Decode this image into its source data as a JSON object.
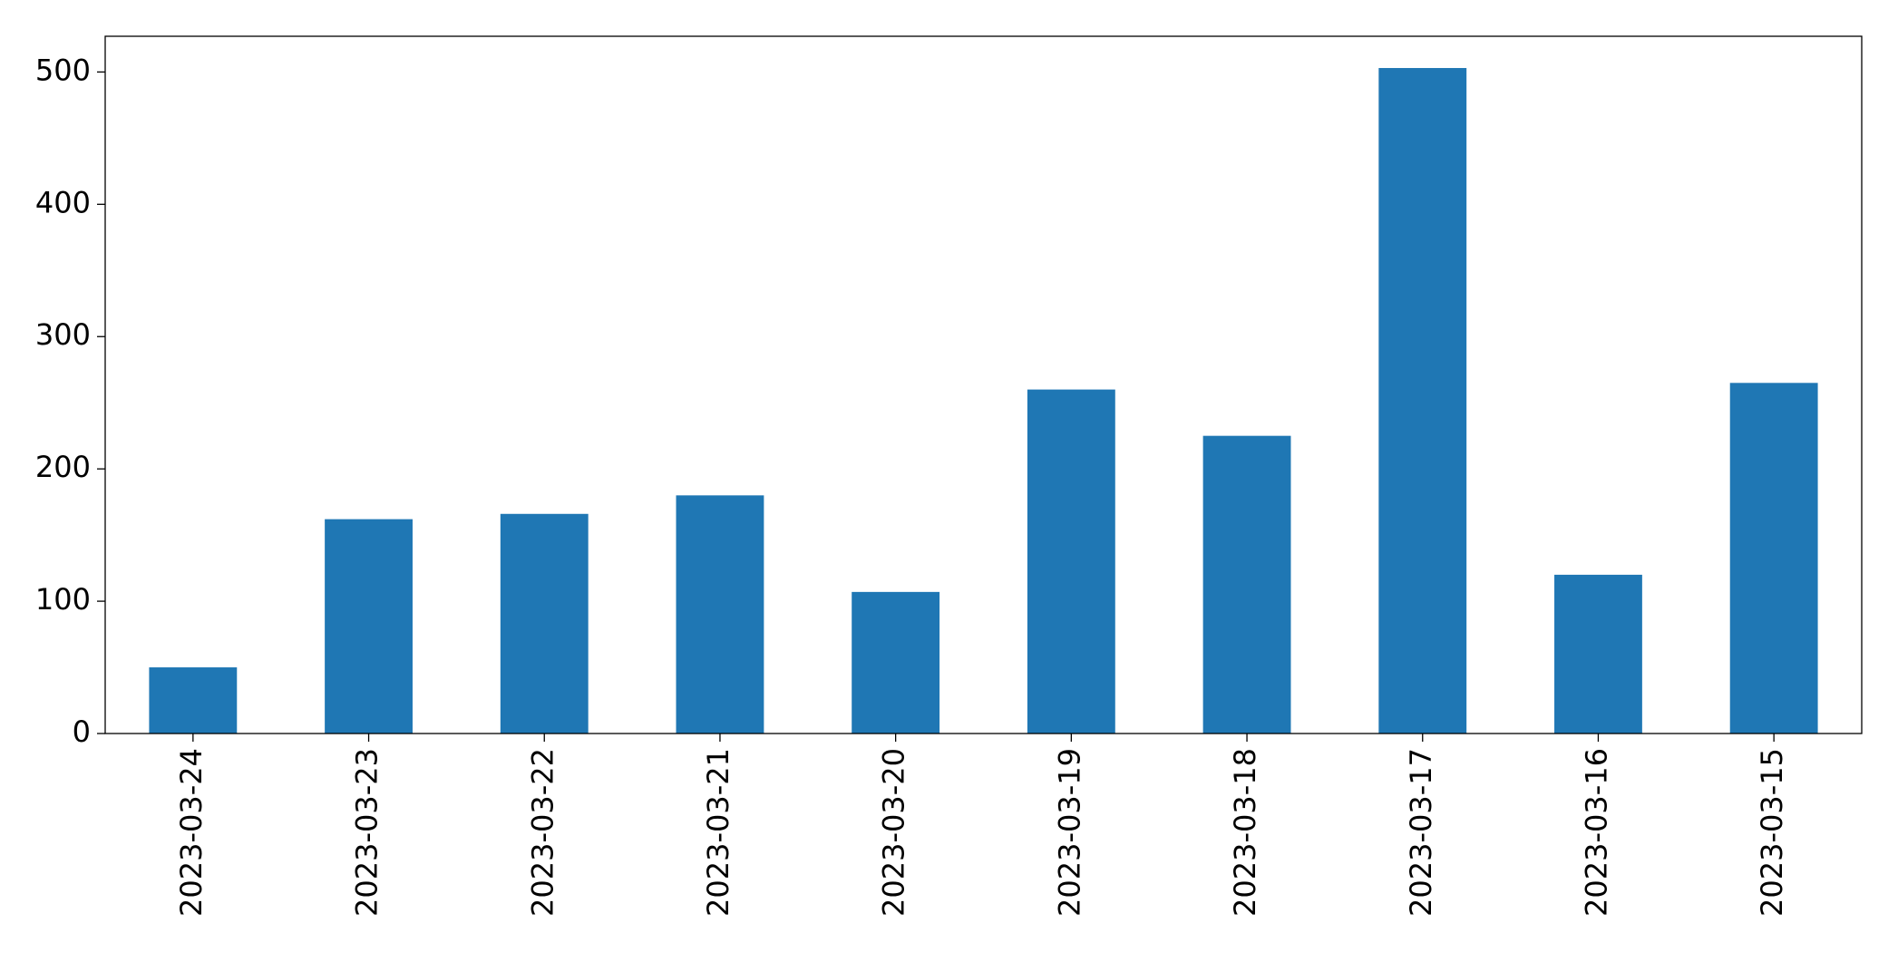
{
  "chart_data": {
    "type": "bar",
    "categories": [
      "2023-03-24",
      "2023-03-23",
      "2023-03-22",
      "2023-03-21",
      "2023-03-20",
      "2023-03-19",
      "2023-03-18",
      "2023-03-17",
      "2023-03-16",
      "2023-03-15"
    ],
    "values": [
      50,
      162,
      166,
      180,
      107,
      260,
      225,
      503,
      120,
      265
    ],
    "color": "#1f77b4",
    "ylim": [
      0,
      527
    ],
    "yticks": [
      0,
      100,
      200,
      300,
      400,
      500
    ],
    "grid": false
  }
}
